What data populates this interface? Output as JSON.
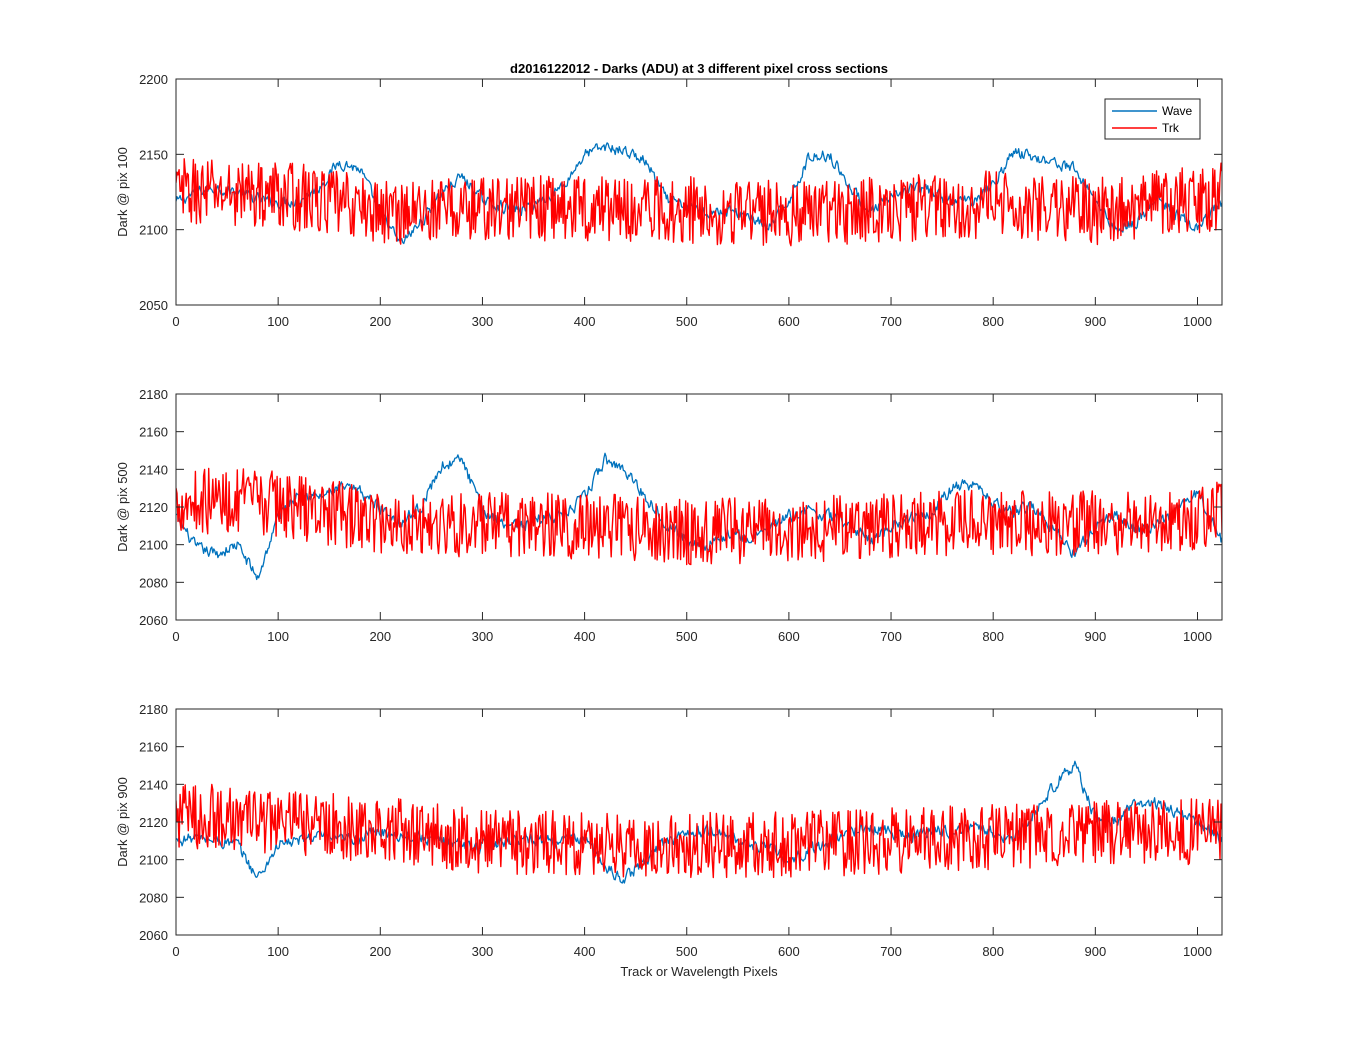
{
  "figure": {
    "title": "d2016122012 - Darks (ADU) at 3 different pixel cross sections",
    "xlabel": "Track or Wavelength Pixels",
    "legend": {
      "entries": [
        "Wave",
        "Trk"
      ],
      "position": "top-right of top panel"
    },
    "colors": {
      "Wave": "#0072bd",
      "Trk": "#ff0000",
      "axes": "#262626",
      "background": "#ffffff"
    }
  },
  "chart_data": [
    {
      "type": "line",
      "panel": "top",
      "ylabel": "Dark @ pix 100",
      "xlim": [
        0,
        1024
      ],
      "ylim": [
        2050,
        2200
      ],
      "xticks": [
        0,
        100,
        200,
        300,
        400,
        500,
        600,
        700,
        800,
        900,
        1000
      ],
      "yticks": [
        2050,
        2100,
        2150,
        2200
      ],
      "grid": false,
      "legend": [
        "Wave",
        "Trk"
      ],
      "series": [
        {
          "name": "Wave",
          "color": "#0072bd",
          "noise": 6,
          "x": [
            0,
            20,
            40,
            60,
            80,
            100,
            120,
            140,
            160,
            180,
            200,
            220,
            240,
            260,
            280,
            300,
            320,
            340,
            360,
            380,
            400,
            420,
            440,
            460,
            480,
            500,
            520,
            540,
            560,
            580,
            600,
            620,
            640,
            660,
            680,
            700,
            720,
            740,
            760,
            780,
            800,
            820,
            840,
            860,
            880,
            900,
            920,
            940,
            960,
            980,
            1000,
            1024
          ],
          "values": [
            2118,
            2125,
            2128,
            2125,
            2120,
            2118,
            2120,
            2128,
            2145,
            2140,
            2112,
            2090,
            2105,
            2125,
            2135,
            2120,
            2115,
            2113,
            2120,
            2130,
            2150,
            2155,
            2152,
            2145,
            2120,
            2115,
            2112,
            2112,
            2110,
            2100,
            2120,
            2148,
            2150,
            2128,
            2112,
            2120,
            2128,
            2125,
            2118,
            2120,
            2130,
            2152,
            2148,
            2145,
            2140,
            2120,
            2100,
            2105,
            2120,
            2110,
            2100,
            2118
          ]
        },
        {
          "name": "Trk",
          "color": "#ff0000",
          "noise": 14,
          "x": [
            0,
            100,
            200,
            300,
            400,
            500,
            600,
            700,
            800,
            900,
            1024
          ],
          "values": [
            2125,
            2124,
            2112,
            2114,
            2115,
            2113,
            2111,
            2114,
            2117,
            2112,
            2122
          ]
        }
      ]
    },
    {
      "type": "line",
      "panel": "middle",
      "ylabel": "Dark @ pix 500",
      "xlim": [
        0,
        1024
      ],
      "ylim": [
        2060,
        2180
      ],
      "xticks": [
        0,
        100,
        200,
        300,
        400,
        500,
        600,
        700,
        800,
        900,
        1000
      ],
      "yticks": [
        2060,
        2080,
        2100,
        2120,
        2140,
        2160,
        2180
      ],
      "grid": false,
      "series": [
        {
          "name": "Wave",
          "color": "#0072bd",
          "noise": 5,
          "x": [
            0,
            20,
            40,
            60,
            80,
            100,
            120,
            140,
            160,
            180,
            200,
            220,
            240,
            260,
            280,
            300,
            320,
            340,
            360,
            380,
            400,
            420,
            440,
            460,
            480,
            500,
            520,
            540,
            560,
            580,
            600,
            620,
            640,
            660,
            680,
            700,
            720,
            740,
            760,
            780,
            800,
            820,
            840,
            860,
            880,
            900,
            920,
            940,
            960,
            980,
            1000,
            1024
          ],
          "values": [
            2115,
            2098,
            2095,
            2100,
            2082,
            2115,
            2128,
            2125,
            2130,
            2128,
            2120,
            2112,
            2120,
            2142,
            2145,
            2118,
            2112,
            2110,
            2115,
            2115,
            2125,
            2145,
            2140,
            2125,
            2112,
            2102,
            2100,
            2105,
            2103,
            2108,
            2115,
            2118,
            2115,
            2110,
            2102,
            2110,
            2115,
            2118,
            2130,
            2132,
            2122,
            2118,
            2120,
            2108,
            2095,
            2110,
            2115,
            2108,
            2110,
            2118,
            2128,
            2102
          ]
        },
        {
          "name": "Trk",
          "color": "#ff0000",
          "noise": 11,
          "x": [
            0,
            100,
            200,
            300,
            400,
            500,
            600,
            700,
            800,
            900,
            1024
          ],
          "values": [
            2124,
            2122,
            2112,
            2110,
            2110,
            2107,
            2108,
            2110,
            2112,
            2111,
            2116
          ]
        }
      ]
    },
    {
      "type": "line",
      "panel": "bottom",
      "ylabel": "Dark @ pix 900",
      "xlim": [
        0,
        1024
      ],
      "ylim": [
        2060,
        2180
      ],
      "xticks": [
        0,
        100,
        200,
        300,
        400,
        500,
        600,
        700,
        800,
        900,
        1000
      ],
      "yticks": [
        2060,
        2080,
        2100,
        2120,
        2140,
        2160,
        2180
      ],
      "grid": false,
      "series": [
        {
          "name": "Wave",
          "color": "#0072bd",
          "noise": 5,
          "x": [
            0,
            20,
            40,
            60,
            80,
            100,
            120,
            140,
            160,
            180,
            200,
            220,
            240,
            260,
            280,
            300,
            320,
            340,
            360,
            380,
            400,
            420,
            440,
            460,
            480,
            500,
            520,
            540,
            560,
            580,
            600,
            620,
            640,
            660,
            680,
            700,
            720,
            740,
            760,
            780,
            800,
            820,
            840,
            860,
            880,
            900,
            920,
            940,
            960,
            980,
            1000,
            1024
          ],
          "values": [
            2110,
            2112,
            2110,
            2108,
            2090,
            2108,
            2110,
            2113,
            2110,
            2112,
            2115,
            2113,
            2112,
            2110,
            2108,
            2107,
            2110,
            2112,
            2110,
            2110,
            2112,
            2095,
            2090,
            2100,
            2110,
            2114,
            2115,
            2113,
            2108,
            2107,
            2098,
            2105,
            2110,
            2115,
            2117,
            2115,
            2112,
            2116,
            2115,
            2117,
            2115,
            2110,
            2125,
            2140,
            2150,
            2122,
            2120,
            2130,
            2130,
            2125,
            2120,
            2110
          ]
        },
        {
          "name": "Trk",
          "color": "#ff0000",
          "noise": 11,
          "x": [
            0,
            100,
            200,
            300,
            400,
            500,
            600,
            700,
            800,
            900,
            1024
          ],
          "values": [
            2124,
            2120,
            2116,
            2110,
            2108,
            2108,
            2108,
            2110,
            2112,
            2114,
            2115
          ]
        }
      ]
    }
  ]
}
